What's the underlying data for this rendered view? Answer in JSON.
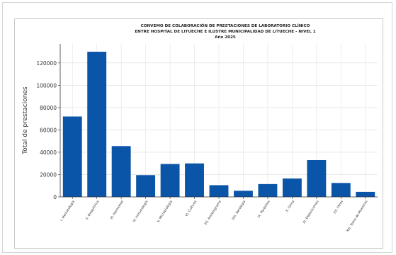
{
  "chart_data": {
    "type": "bar",
    "title_lines": [
      "CONVEMO DE COLABORACIÓN DE PRESTACIONES DE LABORATORIO CLÍNICO",
      "ENTRE HOSPITAL DE LITUECHE E ILUSTRE MUNICIPALIDAD DE LITUECHE - NIVEL 1",
      "Año 2025"
    ],
    "xlabel": "",
    "ylabel": "Total de prestaciones",
    "categories": [
      "I. Hematología",
      "II. Bioquímica",
      "III. Hormonas",
      "IV. Inmunología",
      "V. Microbiología",
      "VI. Cultivos",
      "VII. Antibiograma",
      "VIII. Serología",
      "IX. Parásitos",
      "X. Orina",
      "XI. Deposiciones",
      "XII. Otros",
      "XIII. Toma de Muestras"
    ],
    "values": [
      72000,
      130000,
      45500,
      19500,
      29500,
      30000,
      10500,
      5500,
      11500,
      16500,
      33000,
      12500,
      4500
    ],
    "yticks": [
      0,
      20000,
      40000,
      60000,
      80000,
      100000,
      120000
    ],
    "ylim": [
      0,
      137000
    ],
    "bar_color": "#0b55a8",
    "grid": true
  }
}
